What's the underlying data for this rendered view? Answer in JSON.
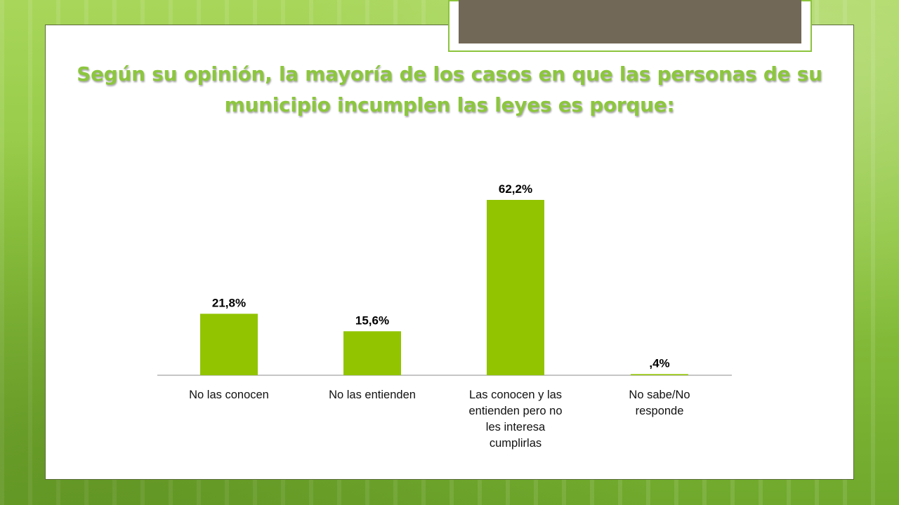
{
  "slide": {
    "title": "Según su opinión, la mayoría de los casos en que las personas de su municipio incumplen las leyes es porque:"
  },
  "colors": {
    "bar": "#92c400",
    "title": "#8cc63e",
    "frame_tab": "#726857",
    "background": "#8cc43c"
  },
  "chart_data": {
    "type": "bar",
    "title": "Según su opinión, la mayoría de los casos en que las personas de su municipio incumplen las leyes es porque:",
    "categories": [
      [
        "No las conocen"
      ],
      [
        "No las entienden"
      ],
      [
        "Las conocen y las",
        "entienden pero no",
        "les interesa",
        "cumplirlas"
      ],
      [
        "No sabe/No",
        "responde"
      ]
    ],
    "values": [
      21.8,
      15.6,
      62.2,
      0.4
    ],
    "value_labels": [
      "21,8%",
      "15,6%",
      "62,2%",
      ",4%"
    ],
    "xlabel": "",
    "ylabel": "",
    "ylim": [
      0,
      70
    ],
    "grid": false,
    "legend": "none"
  }
}
